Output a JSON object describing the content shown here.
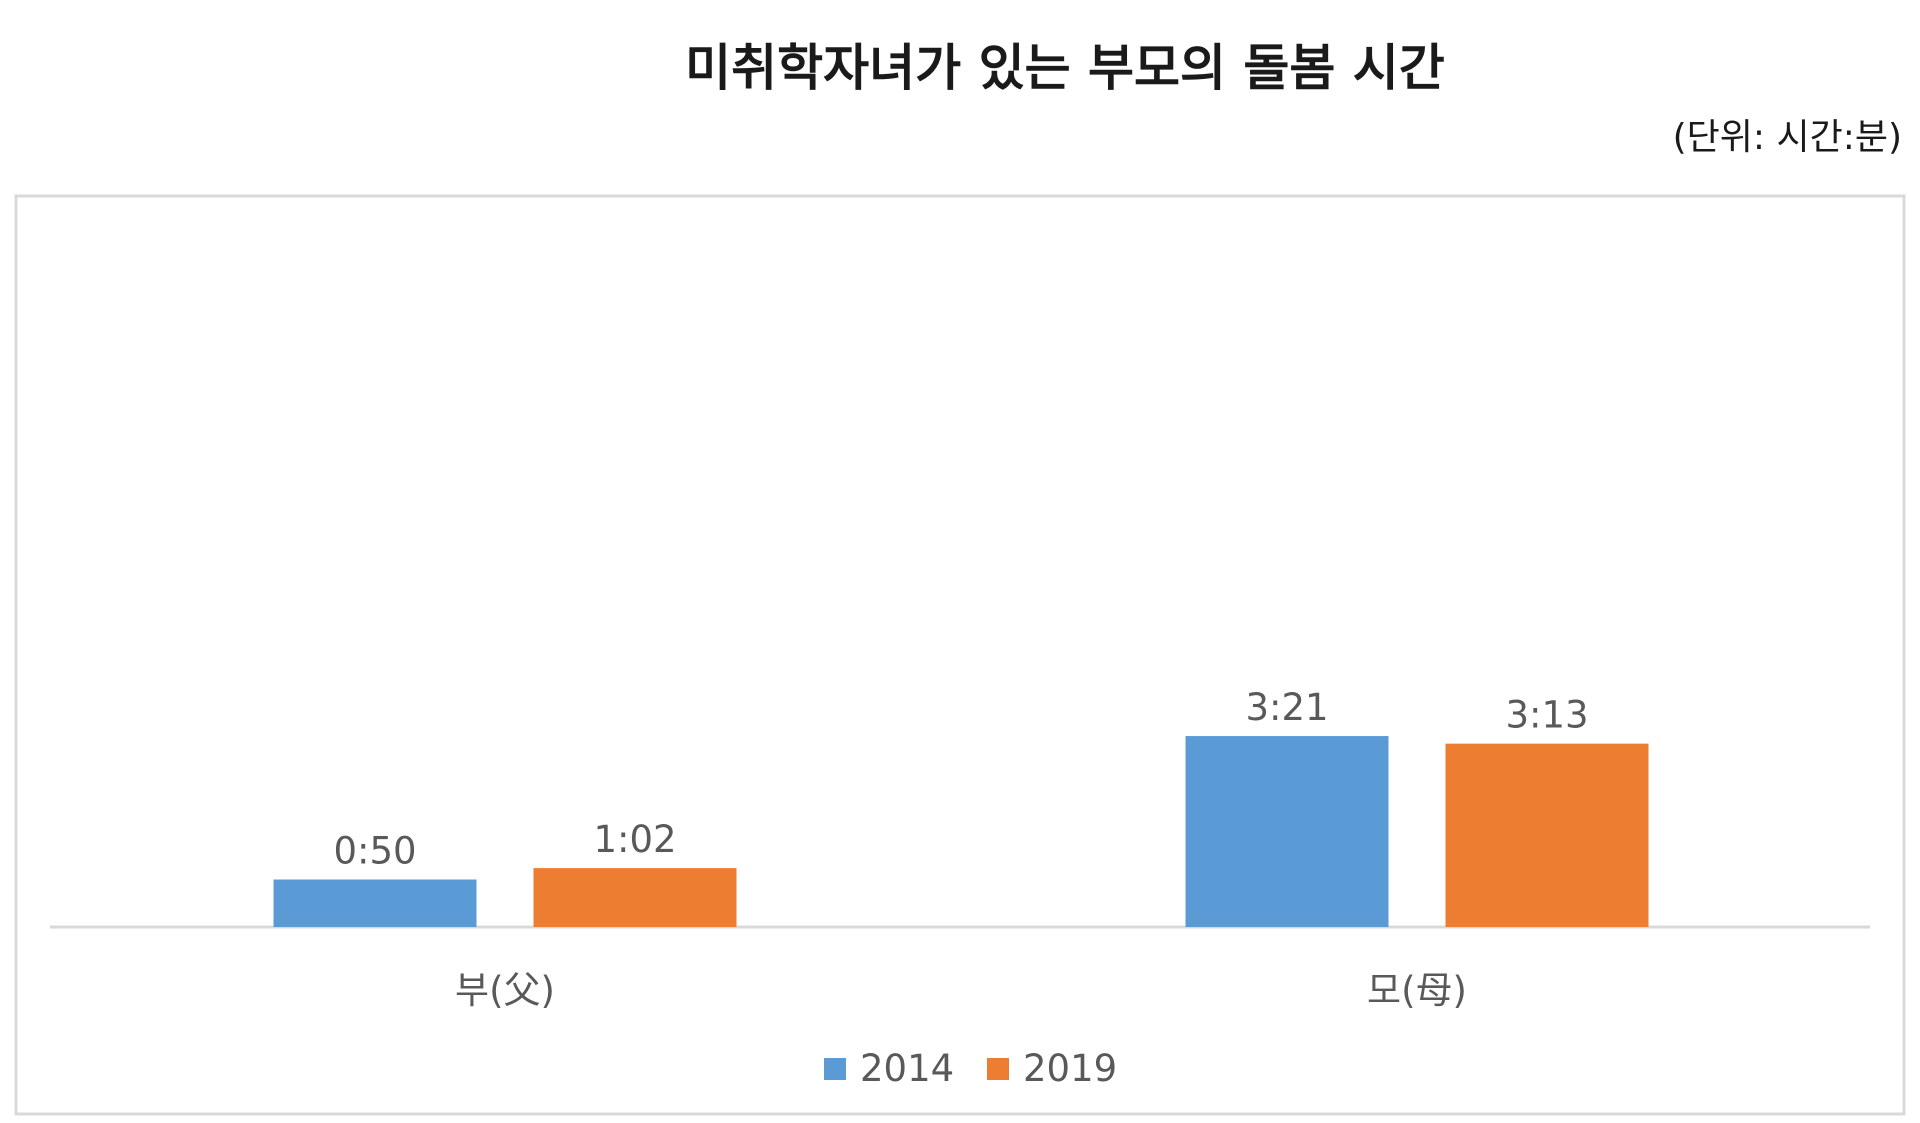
{
  "chart_data": {
    "type": "bar",
    "title": "미취학자녀가 있는 부모의 돌봄 시간",
    "unit_note": "(단위: 시간:분)",
    "categories": [
      "부(父)",
      "모(母)"
    ],
    "series": [
      {
        "name": "2014",
        "color": "#5b9bd5",
        "values": [
          50,
          201
        ],
        "labels": [
          "0:50",
          "3:21"
        ]
      },
      {
        "name": "2019",
        "color": "#ed7d31",
        "values": [
          62,
          193
        ],
        "labels": [
          "1:02",
          "3:13"
        ]
      }
    ],
    "value_unit": "minutes",
    "ylim": [
      0,
      240
    ],
    "grid": false,
    "legend": "bottom"
  }
}
